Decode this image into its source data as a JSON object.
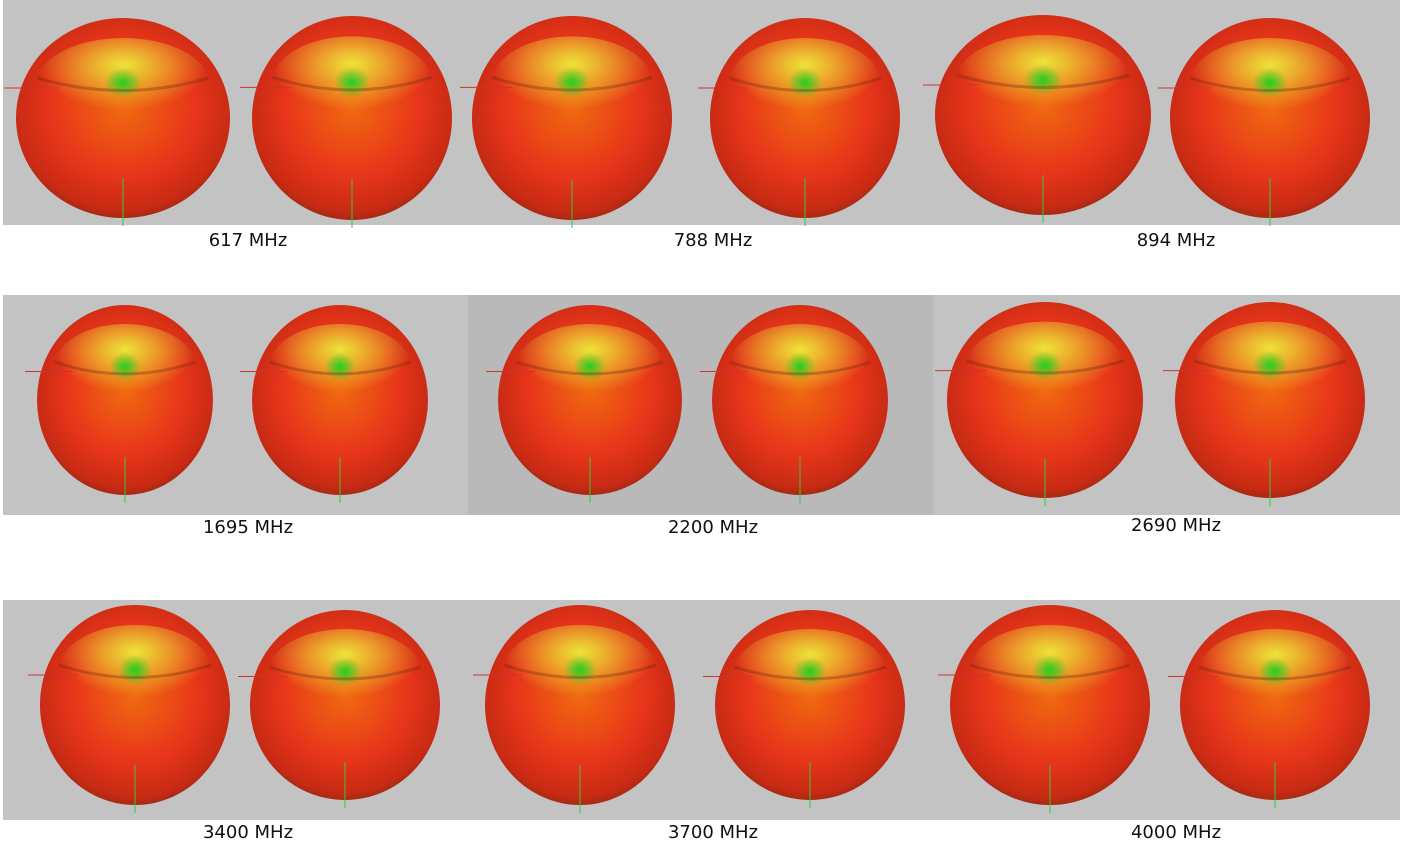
{
  "captions": [
    "617 MHz",
    "788 MHz",
    "894 MHz",
    "1695 MHz",
    "2200 MHz",
    "2690 MHz",
    "3400 MHz",
    "3700 MHz",
    "4000 MHz"
  ]
}
